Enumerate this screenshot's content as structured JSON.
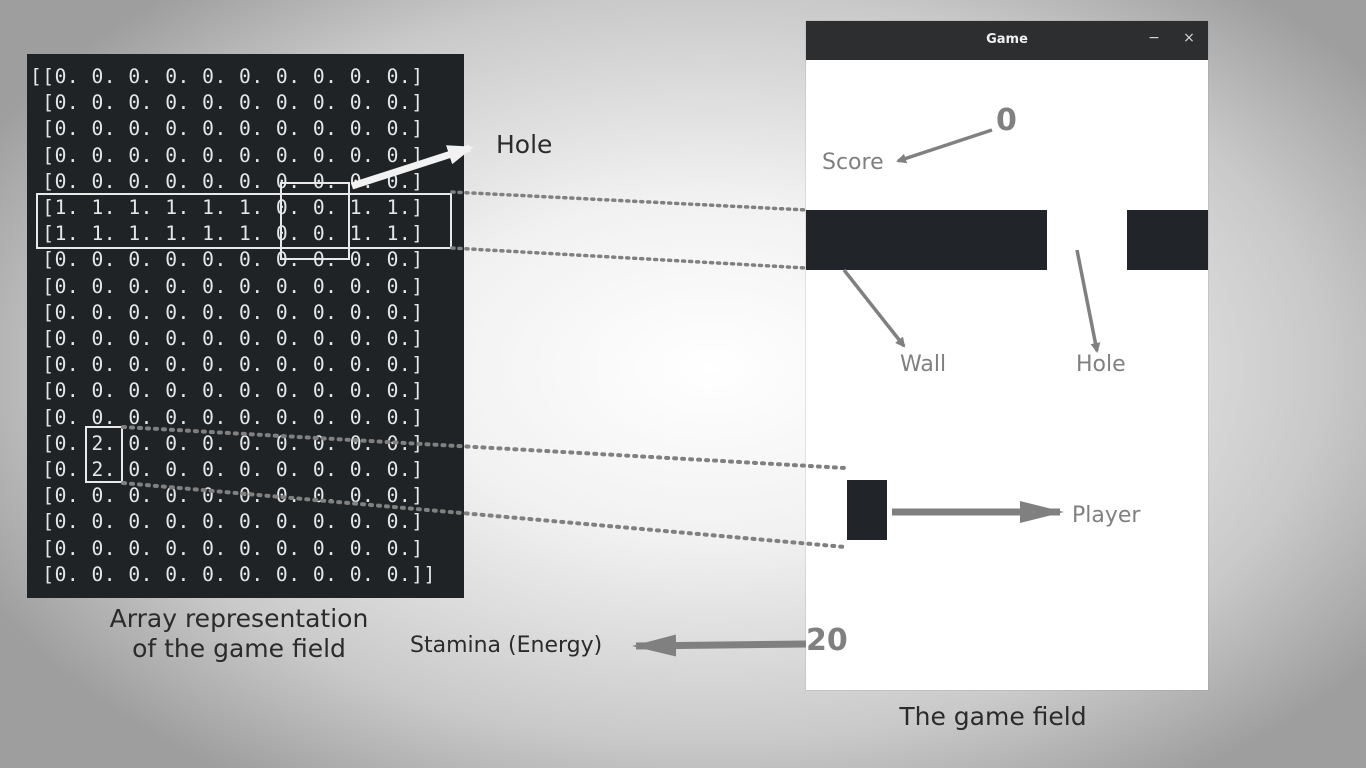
{
  "array_view": {
    "lines": [
      "[[0. 0. 0. 0. 0. 0. 0. 0. 0. 0.]",
      " [0. 0. 0. 0. 0. 0. 0. 0. 0. 0.]",
      " [0. 0. 0. 0. 0. 0. 0. 0. 0. 0.]",
      " [0. 0. 0. 0. 0. 0. 0. 0. 0. 0.]",
      " [0. 0. 0. 0. 0. 0. 0. 0. 0. 0.]",
      " [1. 1. 1. 1. 1. 1. 0. 0. 1. 1.]",
      " [1. 1. 1. 1. 1. 1. 0. 0. 1. 1.]",
      " [0. 0. 0. 0. 0. 0. 0. 0. 0. 0.]",
      " [0. 0. 0. 0. 0. 0. 0. 0. 0. 0.]",
      " [0. 0. 0. 0. 0. 0. 0. 0. 0. 0.]",
      " [0. 0. 0. 0. 0. 0. 0. 0. 0. 0.]",
      " [0. 0. 0. 0. 0. 0. 0. 0. 0. 0.]",
      " [0. 0. 0. 0. 0. 0. 0. 0. 0. 0.]",
      " [0. 0. 0. 0. 0. 0. 0. 0. 0. 0.]",
      " [0. 2. 0. 0. 0. 0. 0. 0. 0. 0.]",
      " [0. 2. 0. 0. 0. 0. 0. 0. 0. 0.]",
      " [0. 0. 0. 0. 0. 0. 0. 0. 0. 0.]",
      " [0. 0. 0. 0. 0. 0. 0. 0. 0. 0.]",
      " [0. 0. 0. 0. 0. 0. 0. 0. 0. 0.]",
      " [0. 0. 0. 0. 0. 0. 0. 0. 0. 0.]]"
    ],
    "caption_line1": "Array representation",
    "caption_line2": "of the game field"
  },
  "annotations": {
    "hole_array": "Hole",
    "score": "Score",
    "wall": "Wall",
    "hole_game": "Hole",
    "player": "Player",
    "stamina": "Stamina (Energy)",
    "game_field_caption": "The game field"
  },
  "game_window": {
    "title": "Game",
    "minimize_icon": "−",
    "close_icon": "×",
    "score_value": "0",
    "stamina_value": "20"
  },
  "colors": {
    "console_bg": "#1f2326",
    "wall": "#212428",
    "annotation_gray": "#808080"
  }
}
